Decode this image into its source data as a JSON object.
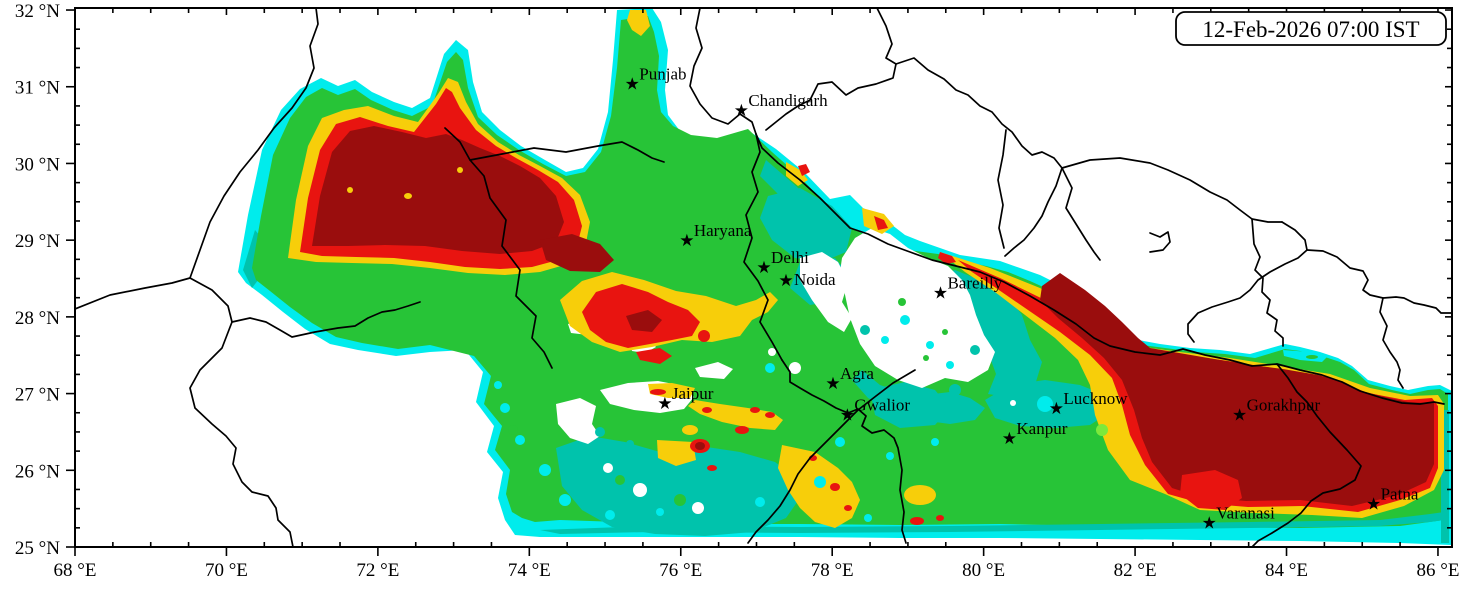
{
  "figure": {
    "timestamp_label": "12-Feb-2026 07:00 IST"
  },
  "map": {
    "extent": {
      "lon_min": 68,
      "lon_max": 86,
      "lat_min": 25,
      "lat_max": 32
    },
    "axis": {
      "x_ticks": [
        {
          "value": 68,
          "label": "68 °E"
        },
        {
          "value": 70,
          "label": "70 °E"
        },
        {
          "value": 72,
          "label": "72 °E"
        },
        {
          "value": 74,
          "label": "74 °E"
        },
        {
          "value": 76,
          "label": "76 °E"
        },
        {
          "value": 78,
          "label": "78 °E"
        },
        {
          "value": 80,
          "label": "80 °E"
        },
        {
          "value": 82,
          "label": "82 °E"
        },
        {
          "value": 84,
          "label": "84 °E"
        },
        {
          "value": 86,
          "label": "86 °E"
        }
      ],
      "y_ticks": [
        {
          "value": 25,
          "label": "25 °N"
        },
        {
          "value": 26,
          "label": "26 °N"
        },
        {
          "value": 27,
          "label": "27 °N"
        },
        {
          "value": 28,
          "label": "28 °N"
        },
        {
          "value": 29,
          "label": "29 °N"
        },
        {
          "value": 30,
          "label": "30 °N"
        },
        {
          "value": 31,
          "label": "31 °N"
        },
        {
          "value": 32,
          "label": "32 °N"
        }
      ],
      "x_minor_step": 0.5,
      "y_minor_step": 0.25
    },
    "cities": [
      {
        "name": "Punjab",
        "lon": 75.36,
        "lat": 31.04
      },
      {
        "name": "Chandigarh",
        "lon": 76.8,
        "lat": 30.7
      },
      {
        "name": "Haryana",
        "lon": 76.08,
        "lat": 29.0
      },
      {
        "name": "Delhi",
        "lon": 77.1,
        "lat": 28.65
      },
      {
        "name": "Noida",
        "lon": 77.39,
        "lat": 28.48,
        "dx": 8,
        "dy": 5
      },
      {
        "name": "Bareilly",
        "lon": 79.43,
        "lat": 28.32
      },
      {
        "name": "Jaipur",
        "lon": 75.79,
        "lat": 26.88
      },
      {
        "name": "Agra",
        "lon": 78.01,
        "lat": 27.14
      },
      {
        "name": "Gwalior",
        "lon": 78.2,
        "lat": 26.73
      },
      {
        "name": "Kanpur",
        "lon": 80.34,
        "lat": 26.42
      },
      {
        "name": "Lucknow",
        "lon": 80.96,
        "lat": 26.81
      },
      {
        "name": "Gorakhpur",
        "lon": 83.38,
        "lat": 26.73
      },
      {
        "name": "Varanasi",
        "lon": 82.98,
        "lat": 25.32
      },
      {
        "name": "Patna",
        "lon": 85.15,
        "lat": 25.57
      }
    ],
    "palette": {
      "white": "#ffffff",
      "cyan": "#00ecec",
      "teal": "#00c3ac",
      "green": "#27c437",
      "lgreen": "#7ce93b",
      "yellow": "#f7ce0a",
      "red": "#e81410",
      "darkred": "#9a0d0d",
      "boundary": "#000000"
    }
  }
}
